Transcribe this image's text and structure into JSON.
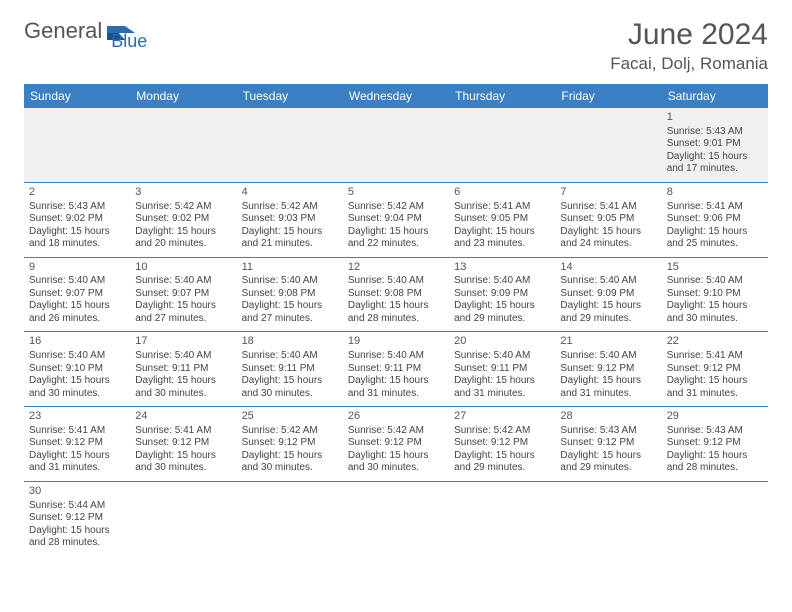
{
  "logo": {
    "text1": "General",
    "text2": "Blue"
  },
  "title": "June 2024",
  "location": "Facai, Dolj, Romania",
  "headers": [
    "Sunday",
    "Monday",
    "Tuesday",
    "Wednesday",
    "Thursday",
    "Friday",
    "Saturday"
  ],
  "colors": {
    "header_bg": "#3b7fc4",
    "header_fg": "#ffffff",
    "border": "#3b7fc4",
    "text": "#444444",
    "title": "#555555",
    "logo_gray": "#555555",
    "logo_blue": "#2b6cb0",
    "empty_bg": "#f0f0f0"
  },
  "typography": {
    "title_fontsize": 30,
    "location_fontsize": 17,
    "header_fontsize": 12,
    "cell_fontsize": 10,
    "daynum_fontsize": 11
  },
  "weeks": [
    [
      null,
      null,
      null,
      null,
      null,
      null,
      {
        "n": "1",
        "sr": "Sunrise: 5:43 AM",
        "ss": "Sunset: 9:01 PM",
        "d1": "Daylight: 15 hours",
        "d2": "and 17 minutes."
      }
    ],
    [
      {
        "n": "2",
        "sr": "Sunrise: 5:43 AM",
        "ss": "Sunset: 9:02 PM",
        "d1": "Daylight: 15 hours",
        "d2": "and 18 minutes."
      },
      {
        "n": "3",
        "sr": "Sunrise: 5:42 AM",
        "ss": "Sunset: 9:02 PM",
        "d1": "Daylight: 15 hours",
        "d2": "and 20 minutes."
      },
      {
        "n": "4",
        "sr": "Sunrise: 5:42 AM",
        "ss": "Sunset: 9:03 PM",
        "d1": "Daylight: 15 hours",
        "d2": "and 21 minutes."
      },
      {
        "n": "5",
        "sr": "Sunrise: 5:42 AM",
        "ss": "Sunset: 9:04 PM",
        "d1": "Daylight: 15 hours",
        "d2": "and 22 minutes."
      },
      {
        "n": "6",
        "sr": "Sunrise: 5:41 AM",
        "ss": "Sunset: 9:05 PM",
        "d1": "Daylight: 15 hours",
        "d2": "and 23 minutes."
      },
      {
        "n": "7",
        "sr": "Sunrise: 5:41 AM",
        "ss": "Sunset: 9:05 PM",
        "d1": "Daylight: 15 hours",
        "d2": "and 24 minutes."
      },
      {
        "n": "8",
        "sr": "Sunrise: 5:41 AM",
        "ss": "Sunset: 9:06 PM",
        "d1": "Daylight: 15 hours",
        "d2": "and 25 minutes."
      }
    ],
    [
      {
        "n": "9",
        "sr": "Sunrise: 5:40 AM",
        "ss": "Sunset: 9:07 PM",
        "d1": "Daylight: 15 hours",
        "d2": "and 26 minutes."
      },
      {
        "n": "10",
        "sr": "Sunrise: 5:40 AM",
        "ss": "Sunset: 9:07 PM",
        "d1": "Daylight: 15 hours",
        "d2": "and 27 minutes."
      },
      {
        "n": "11",
        "sr": "Sunrise: 5:40 AM",
        "ss": "Sunset: 9:08 PM",
        "d1": "Daylight: 15 hours",
        "d2": "and 27 minutes."
      },
      {
        "n": "12",
        "sr": "Sunrise: 5:40 AM",
        "ss": "Sunset: 9:08 PM",
        "d1": "Daylight: 15 hours",
        "d2": "and 28 minutes."
      },
      {
        "n": "13",
        "sr": "Sunrise: 5:40 AM",
        "ss": "Sunset: 9:09 PM",
        "d1": "Daylight: 15 hours",
        "d2": "and 29 minutes."
      },
      {
        "n": "14",
        "sr": "Sunrise: 5:40 AM",
        "ss": "Sunset: 9:09 PM",
        "d1": "Daylight: 15 hours",
        "d2": "and 29 minutes."
      },
      {
        "n": "15",
        "sr": "Sunrise: 5:40 AM",
        "ss": "Sunset: 9:10 PM",
        "d1": "Daylight: 15 hours",
        "d2": "and 30 minutes."
      }
    ],
    [
      {
        "n": "16",
        "sr": "Sunrise: 5:40 AM",
        "ss": "Sunset: 9:10 PM",
        "d1": "Daylight: 15 hours",
        "d2": "and 30 minutes."
      },
      {
        "n": "17",
        "sr": "Sunrise: 5:40 AM",
        "ss": "Sunset: 9:11 PM",
        "d1": "Daylight: 15 hours",
        "d2": "and 30 minutes."
      },
      {
        "n": "18",
        "sr": "Sunrise: 5:40 AM",
        "ss": "Sunset: 9:11 PM",
        "d1": "Daylight: 15 hours",
        "d2": "and 30 minutes."
      },
      {
        "n": "19",
        "sr": "Sunrise: 5:40 AM",
        "ss": "Sunset: 9:11 PM",
        "d1": "Daylight: 15 hours",
        "d2": "and 31 minutes."
      },
      {
        "n": "20",
        "sr": "Sunrise: 5:40 AM",
        "ss": "Sunset: 9:11 PM",
        "d1": "Daylight: 15 hours",
        "d2": "and 31 minutes."
      },
      {
        "n": "21",
        "sr": "Sunrise: 5:40 AM",
        "ss": "Sunset: 9:12 PM",
        "d1": "Daylight: 15 hours",
        "d2": "and 31 minutes."
      },
      {
        "n": "22",
        "sr": "Sunrise: 5:41 AM",
        "ss": "Sunset: 9:12 PM",
        "d1": "Daylight: 15 hours",
        "d2": "and 31 minutes."
      }
    ],
    [
      {
        "n": "23",
        "sr": "Sunrise: 5:41 AM",
        "ss": "Sunset: 9:12 PM",
        "d1": "Daylight: 15 hours",
        "d2": "and 31 minutes."
      },
      {
        "n": "24",
        "sr": "Sunrise: 5:41 AM",
        "ss": "Sunset: 9:12 PM",
        "d1": "Daylight: 15 hours",
        "d2": "and 30 minutes."
      },
      {
        "n": "25",
        "sr": "Sunrise: 5:42 AM",
        "ss": "Sunset: 9:12 PM",
        "d1": "Daylight: 15 hours",
        "d2": "and 30 minutes."
      },
      {
        "n": "26",
        "sr": "Sunrise: 5:42 AM",
        "ss": "Sunset: 9:12 PM",
        "d1": "Daylight: 15 hours",
        "d2": "and 30 minutes."
      },
      {
        "n": "27",
        "sr": "Sunrise: 5:42 AM",
        "ss": "Sunset: 9:12 PM",
        "d1": "Daylight: 15 hours",
        "d2": "and 29 minutes."
      },
      {
        "n": "28",
        "sr": "Sunrise: 5:43 AM",
        "ss": "Sunset: 9:12 PM",
        "d1": "Daylight: 15 hours",
        "d2": "and 29 minutes."
      },
      {
        "n": "29",
        "sr": "Sunrise: 5:43 AM",
        "ss": "Sunset: 9:12 PM",
        "d1": "Daylight: 15 hours",
        "d2": "and 28 minutes."
      }
    ],
    [
      {
        "n": "30",
        "sr": "Sunrise: 5:44 AM",
        "ss": "Sunset: 9:12 PM",
        "d1": "Daylight: 15 hours",
        "d2": "and 28 minutes."
      },
      null,
      null,
      null,
      null,
      null,
      null
    ]
  ]
}
